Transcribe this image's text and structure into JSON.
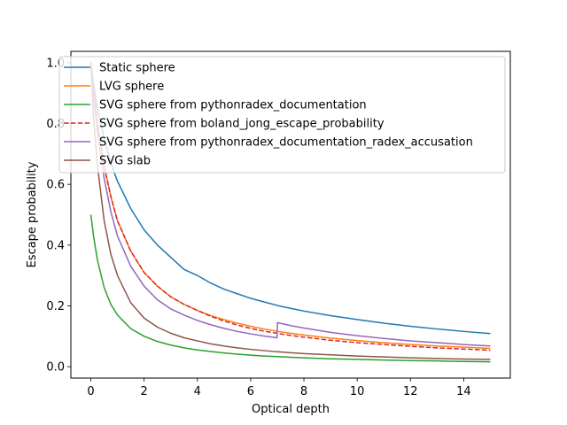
{
  "chart_data": {
    "type": "line",
    "title": "",
    "xlabel": "Optical depth",
    "ylabel": "Escape probability",
    "xlim": [
      -0.75,
      15.75
    ],
    "ylim": [
      -0.0375,
      1.0375
    ],
    "xticks": [
      0,
      2,
      4,
      6,
      8,
      10,
      12,
      14
    ],
    "xtick_labels": [
      "0",
      "2",
      "4",
      "6",
      "8",
      "10",
      "12",
      "14"
    ],
    "yticks": [
      0.0,
      0.2,
      0.4,
      0.6,
      0.8,
      1.0
    ],
    "ytick_labels": [
      "0.0",
      "0.2",
      "0.4",
      "0.6",
      "0.8",
      "1.0"
    ],
    "grid": false,
    "legend_position": "top-right",
    "x": [
      0,
      0.1,
      0.25,
      0.5,
      0.75,
      1,
      1.5,
      2,
      2.5,
      3,
      3.5,
      4,
      4.5,
      5,
      5.5,
      6,
      6.5,
      6.99,
      7.01,
      7.5,
      8,
      9,
      10,
      11,
      12,
      13,
      14,
      15
    ],
    "series": [
      {
        "name": "Static sphere",
        "color": "#1f77b4",
        "dash": "solid",
        "values": [
          1.0,
          0.93,
          0.85,
          0.75,
          0.67,
          0.61,
          0.52,
          0.45,
          0.4,
          0.36,
          0.32,
          0.3,
          0.275,
          0.255,
          0.24,
          0.225,
          0.213,
          0.202,
          0.201,
          0.192,
          0.183,
          0.168,
          0.155,
          0.143,
          0.133,
          0.124,
          0.116,
          0.109
        ]
      },
      {
        "name": "LVG sphere",
        "color": "#ff7f0e",
        "dash": "solid",
        "values": [
          1.0,
          0.91,
          0.8,
          0.66,
          0.56,
          0.48,
          0.38,
          0.31,
          0.265,
          0.23,
          0.205,
          0.185,
          0.168,
          0.155,
          0.143,
          0.133,
          0.124,
          0.117,
          0.116,
          0.11,
          0.104,
          0.094,
          0.086,
          0.079,
          0.073,
          0.068,
          0.064,
          0.06
        ]
      },
      {
        "name": "SVG sphere from pythonradex_documentation",
        "color": "#2ca02c",
        "dash": "solid",
        "values": [
          0.5,
          0.43,
          0.35,
          0.26,
          0.205,
          0.17,
          0.125,
          0.1,
          0.083,
          0.071,
          0.062,
          0.055,
          0.05,
          0.045,
          0.041,
          0.038,
          0.035,
          0.033,
          0.033,
          0.031,
          0.029,
          0.026,
          0.024,
          0.022,
          0.02,
          0.019,
          0.017,
          0.016
        ]
      },
      {
        "name": "SVG sphere from boland_jong_escape_probability",
        "color": "#d62728",
        "dash": "dashed",
        "values": [
          1.0,
          0.91,
          0.8,
          0.66,
          0.56,
          0.48,
          0.38,
          0.31,
          0.265,
          0.23,
          0.205,
          0.185,
          0.166,
          0.15,
          0.137,
          0.126,
          0.117,
          0.11,
          0.109,
          0.103,
          0.097,
          0.087,
          0.079,
          0.073,
          0.067,
          0.062,
          0.058,
          0.054
        ]
      },
      {
        "name": "SVG sphere from pythonradex_documentation_radex_accusation",
        "color": "#9467bd",
        "dash": "solid",
        "values": [
          1.0,
          0.89,
          0.77,
          0.62,
          0.51,
          0.43,
          0.33,
          0.265,
          0.22,
          0.19,
          0.17,
          0.152,
          0.138,
          0.126,
          0.116,
          0.108,
          0.101,
          0.095,
          0.145,
          0.135,
          0.127,
          0.113,
          0.102,
          0.093,
          0.085,
          0.079,
          0.073,
          0.068
        ]
      },
      {
        "name": "SVG slab",
        "color": "#8c564b",
        "dash": "solid",
        "values": [
          1.0,
          0.82,
          0.66,
          0.48,
          0.37,
          0.3,
          0.21,
          0.16,
          0.13,
          0.11,
          0.095,
          0.085,
          0.075,
          0.068,
          0.062,
          0.057,
          0.053,
          0.049,
          0.049,
          0.046,
          0.043,
          0.039,
          0.035,
          0.032,
          0.029,
          0.027,
          0.025,
          0.024
        ]
      }
    ]
  }
}
